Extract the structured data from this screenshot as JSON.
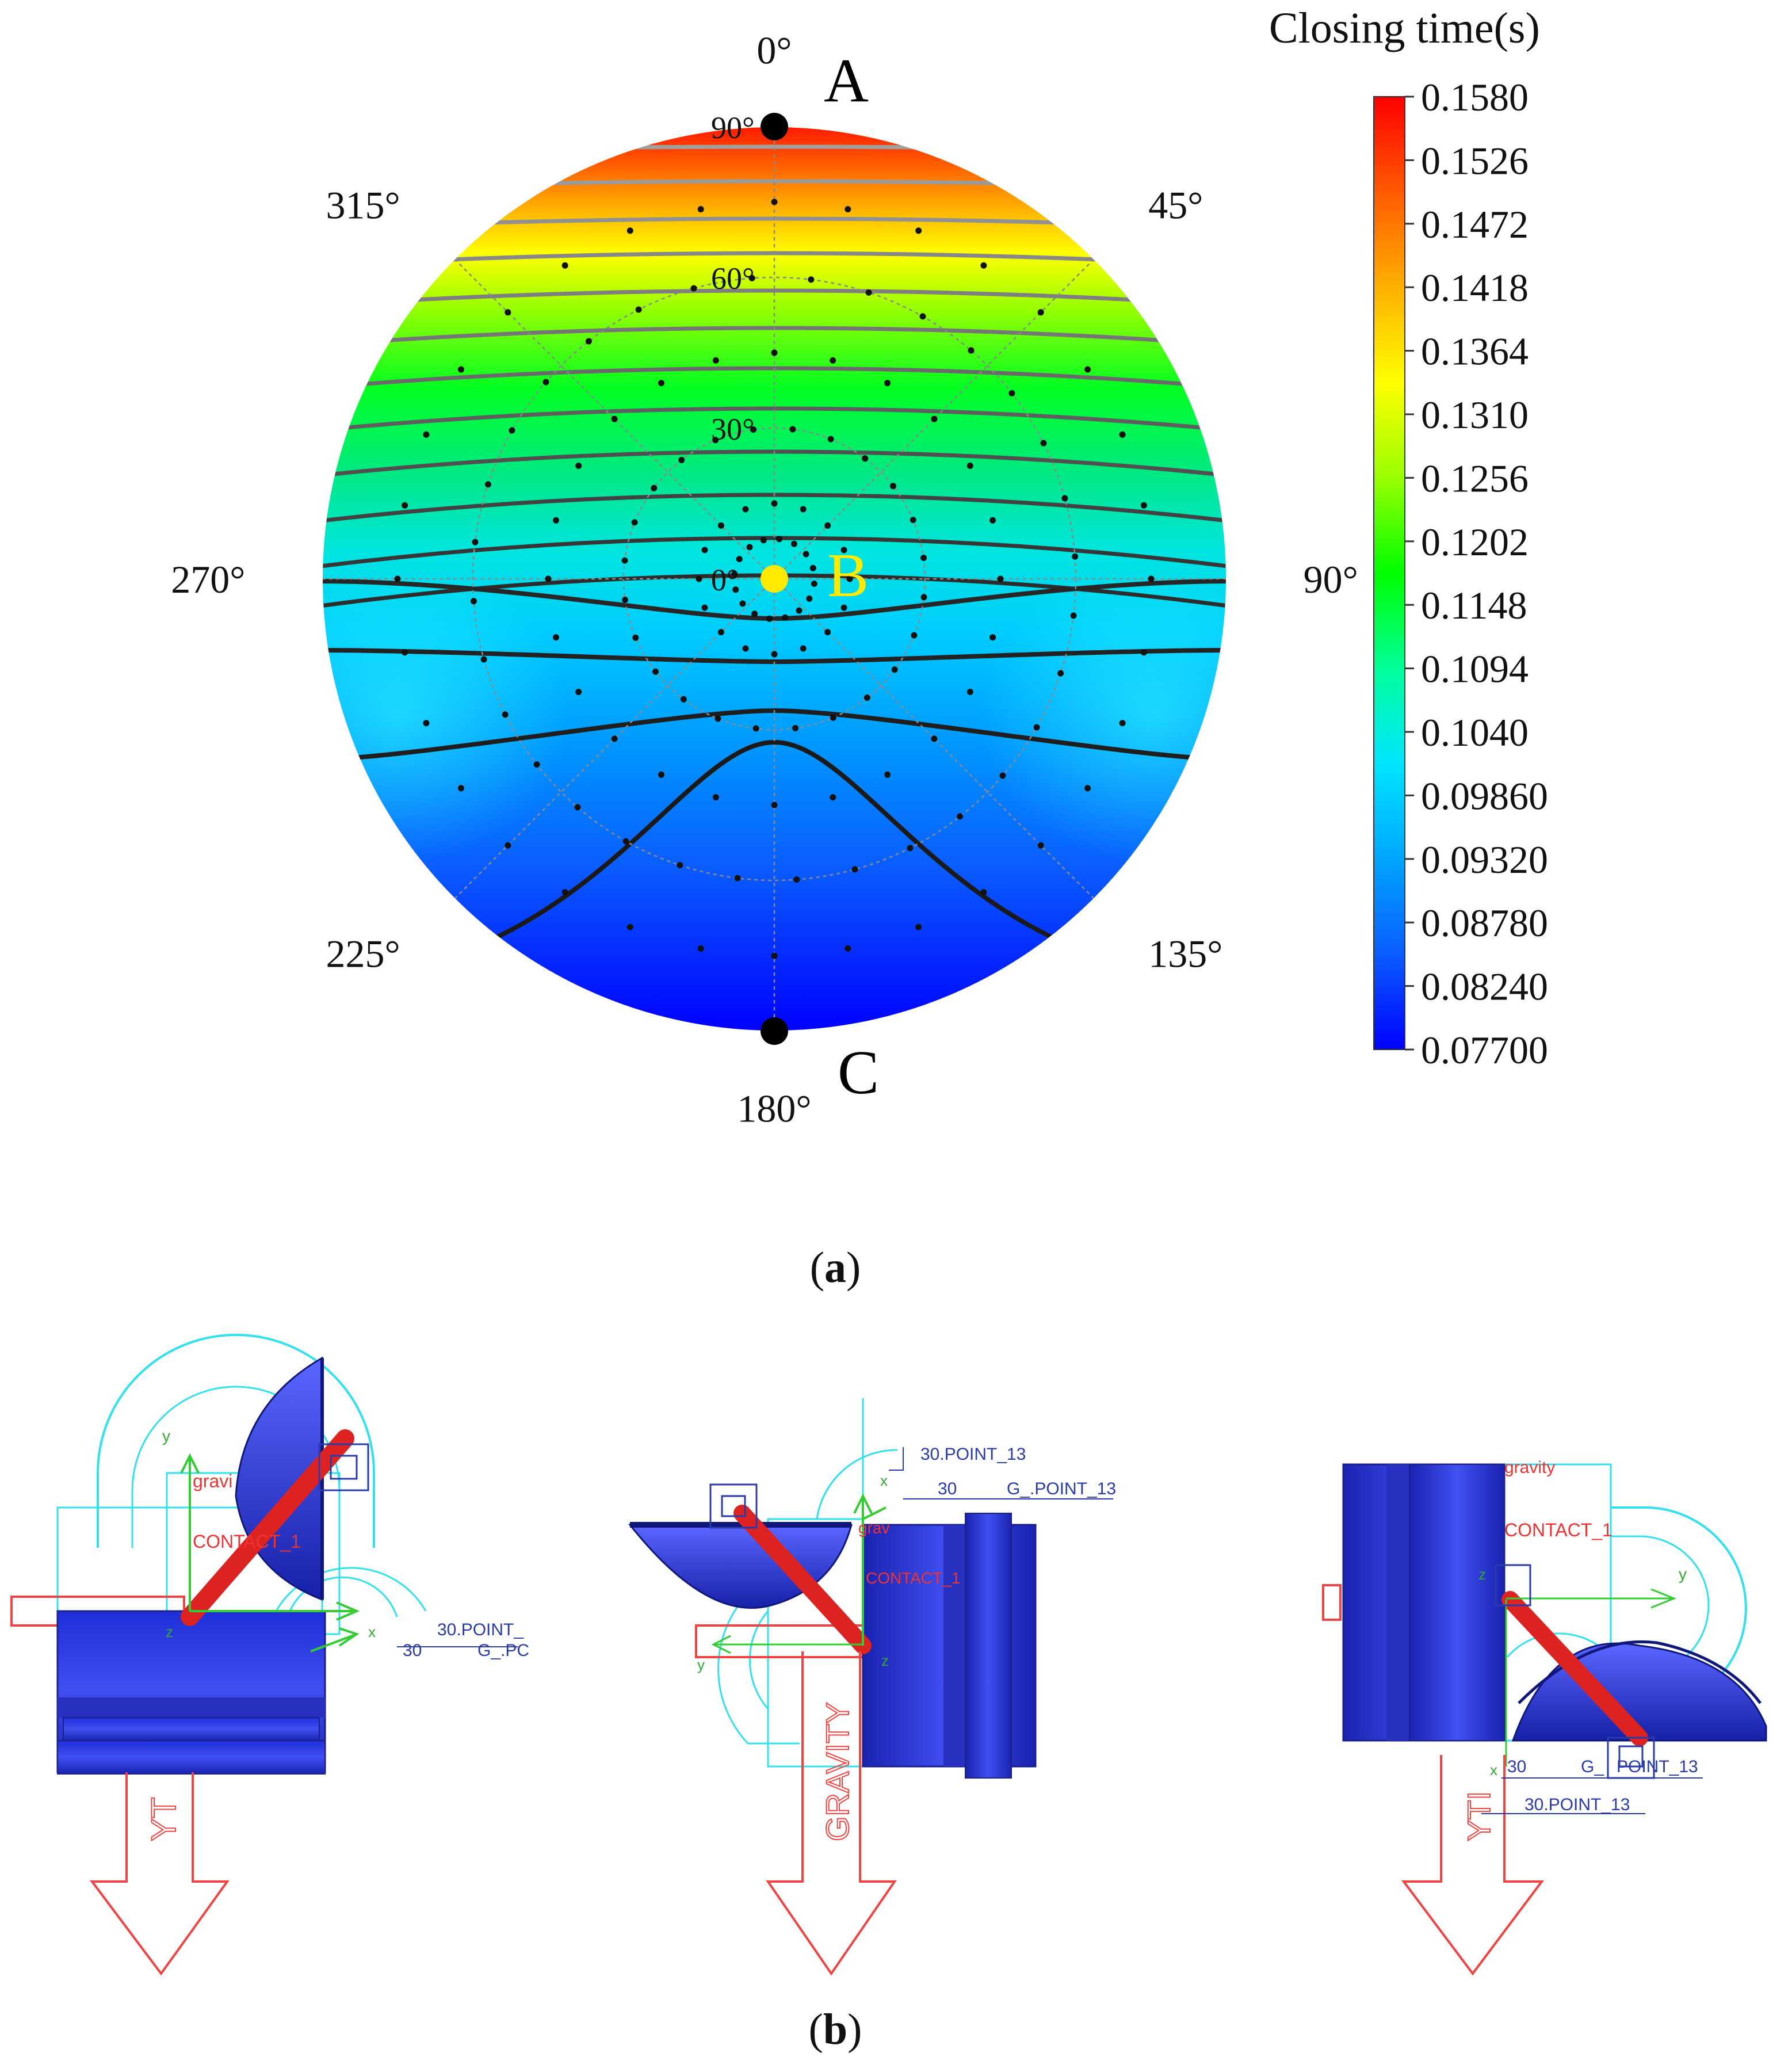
{
  "panel_a": {
    "caption": {
      "open": "(",
      "letter": "a",
      "close": ")"
    },
    "colorbar_title": "Closing time(s)",
    "direction_labels": [
      "0°",
      "45°",
      "90°",
      "135°",
      "180°",
      "225°",
      "270°",
      "315°"
    ],
    "radial_labels": [
      "90°",
      "60°",
      "30°",
      "0°"
    ],
    "points": [
      {
        "name": "A",
        "color": "#000000"
      },
      {
        "name": "B",
        "color": "#ffea00"
      },
      {
        "name": "C",
        "color": "#000000"
      }
    ]
  },
  "chart_data": {
    "type": "heatmap",
    "title": "",
    "projection": "polar",
    "angle_unit": "deg",
    "azimuth_ticks": [
      0,
      45,
      90,
      135,
      180,
      225,
      270,
      315
    ],
    "radial_ticks": [
      0,
      30,
      60,
      90
    ],
    "radial_range": [
      0,
      90
    ],
    "grid": true,
    "legend_placement": "right",
    "colorbar": {
      "title": "Closing time(s)",
      "range": [
        0.077,
        0.158
      ],
      "ticks": [
        "0.1580",
        "0.1526",
        "0.1472",
        "0.1418",
        "0.1364",
        "0.1310",
        "0.1256",
        "0.1202",
        "0.1148",
        "0.1094",
        "0.1040",
        "0.09860",
        "0.09320",
        "0.08780",
        "0.08240",
        "0.07700"
      ],
      "colormap": [
        "#0000ff",
        "#0a5cff",
        "#00a6ff",
        "#00e5ff",
        "#00ff99",
        "#00ff00",
        "#99ff00",
        "#ffff00",
        "#ffb000",
        "#ff5a00",
        "#ff0000"
      ]
    },
    "points": [
      {
        "label": "A",
        "azimuth": 0,
        "radial": 90,
        "closing_time": 0.158
      },
      {
        "label": "B",
        "azimuth": 0,
        "radial": 0,
        "closing_time": 0.096
      },
      {
        "label": "C",
        "azimuth": 180,
        "radial": 90,
        "closing_time": 0.077
      }
    ]
  },
  "panel_b": {
    "caption": {
      "open": "(",
      "letter": "b",
      "close": ")"
    },
    "views": [
      {
        "texts": [
          "y",
          "gravi",
          "CONTACT_1",
          "z",
          "x",
          "30.POINT_",
          "30",
          "G_.PC",
          "YT"
        ]
      },
      {
        "texts": [
          "30.POINT_13",
          "x",
          "30",
          "G_.POINT_13",
          "grav",
          "CONTACT_1",
          "y",
          "z",
          "GRAVITY"
        ]
      },
      {
        "texts": [
          "gravity",
          "CONTACT_1",
          "y",
          "z",
          "30",
          "G_",
          "POINT_13",
          "x",
          "30.POINT_13",
          "YTI"
        ]
      }
    ]
  }
}
